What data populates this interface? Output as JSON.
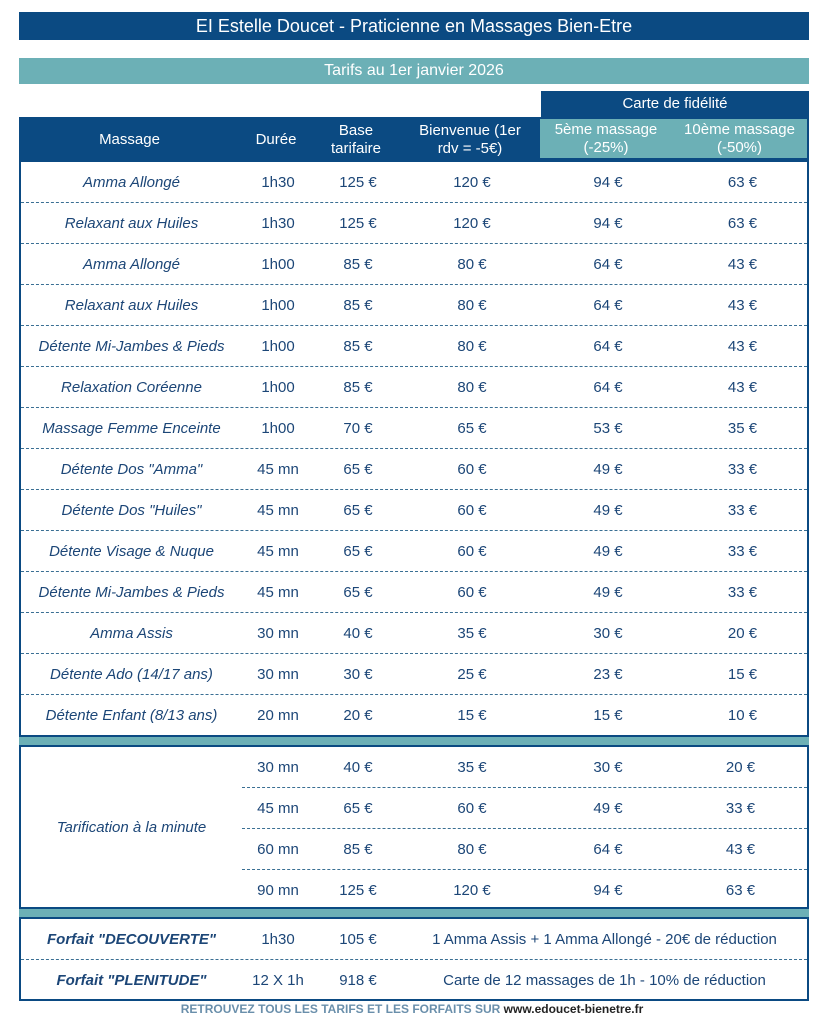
{
  "title": "EI Estelle Doucet - Praticienne en Massages Bien-Etre",
  "subtitle": "Tarifs au 1er janvier 2026",
  "fidelity_header": "Carte de fidélité",
  "headers": {
    "massage": "Massage",
    "duree": "Durée",
    "base": "Base tarifaire",
    "bienvenue": "Bienvenue (1er rdv = -5€)",
    "cinq": "5ème massage (-25%)",
    "dix": "10ème massage (-50%)"
  },
  "rows": [
    [
      "Amma Allongé",
      "1h30",
      "125 €",
      "120 €",
      "94 €",
      "63 €"
    ],
    [
      "Relaxant aux Huiles",
      "1h30",
      "125 €",
      "120 €",
      "94 €",
      "63 €"
    ],
    [
      "Amma Allongé",
      "1h00",
      "85 €",
      "80 €",
      "64 €",
      "43 €"
    ],
    [
      "Relaxant aux Huiles",
      "1h00",
      "85 €",
      "80 €",
      "64 €",
      "43 €"
    ],
    [
      "Détente Mi-Jambes & Pieds",
      "1h00",
      "85 €",
      "80 €",
      "64 €",
      "43 €"
    ],
    [
      "Relaxation Coréenne",
      "1h00",
      "85 €",
      "80 €",
      "64 €",
      "43 €"
    ],
    [
      "Massage Femme Enceinte",
      "1h00",
      "70 €",
      "65 €",
      "53 €",
      "35 €"
    ],
    [
      "Détente Dos \"Amma\"",
      "45 mn",
      "65 €",
      "60 €",
      "49 €",
      "33 €"
    ],
    [
      "Détente Dos \"Huiles\"",
      "45 mn",
      "65 €",
      "60 €",
      "49 €",
      "33 €"
    ],
    [
      "Détente Visage & Nuque",
      "45 mn",
      "65 €",
      "60 €",
      "49 €",
      "33 €"
    ],
    [
      "Détente Mi-Jambes & Pieds",
      "45 mn",
      "65 €",
      "60 €",
      "49 €",
      "33 €"
    ],
    [
      "Amma Assis",
      "30 mn",
      "40 €",
      "35 €",
      "30 €",
      "20 €"
    ],
    [
      "Détente Ado (14/17 ans)",
      "30 mn",
      "30 €",
      "25 €",
      "23 €",
      "15 €"
    ],
    [
      "Détente Enfant (8/13 ans)",
      "20 mn",
      "20 €",
      "15 €",
      "15 €",
      "10 €"
    ]
  ],
  "minute": {
    "label": "Tarification à la minute",
    "rows": [
      [
        "30 mn",
        "40 €",
        "35 €",
        "30 €",
        "20 €"
      ],
      [
        "45 mn",
        "65 €",
        "60 €",
        "49 €",
        "33 €"
      ],
      [
        "60 mn",
        "85 €",
        "80 €",
        "64 €",
        "43 €"
      ],
      [
        "90 mn",
        "125 €",
        "120 €",
        "94 €",
        "63 €"
      ]
    ]
  },
  "forfaits": [
    [
      "Forfait \"DECOUVERTE\"",
      "1h30",
      "105 €",
      "1 Amma Assis + 1 Amma Allongé - 20€ de réduction"
    ],
    [
      "Forfait \"PLENITUDE\"",
      "12 X 1h",
      "918 €",
      "Carte de 12 massages de 1h - 10% de réduction"
    ]
  ],
  "footer": {
    "text": "RETROUVEZ TOUS LES TARIFS ET LES FORFAITS SUR ",
    "url": "www.edoucet-bienetre.fr"
  }
}
